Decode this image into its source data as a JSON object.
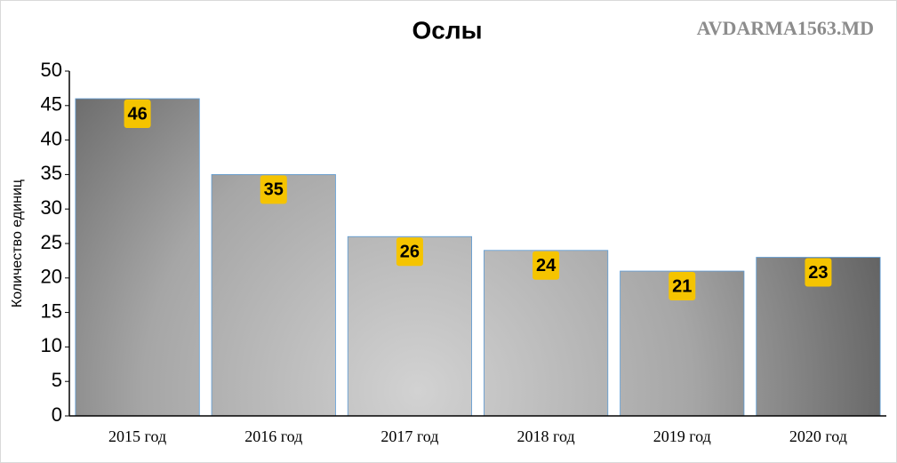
{
  "chart_data": {
    "type": "bar",
    "title": "Ослы",
    "watermark": "AVDARMA1563.MD",
    "y_label": "Количество единиц",
    "categories": [
      "2015 год",
      "2016 год",
      "2017 год",
      "2018 год",
      "2019 год",
      "2020 год"
    ],
    "values": [
      46,
      35,
      26,
      24,
      21,
      23
    ],
    "label_color": "#f5c400",
    "ylim": [
      0,
      50
    ],
    "yticks": [
      0,
      5,
      10,
      15,
      20,
      25,
      30,
      35,
      40,
      45,
      50
    ]
  }
}
